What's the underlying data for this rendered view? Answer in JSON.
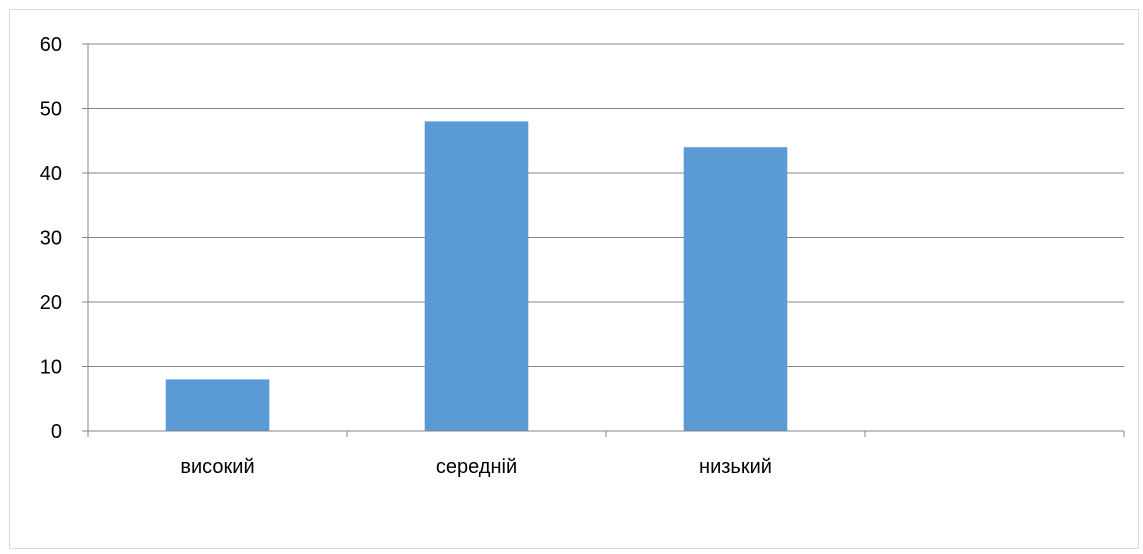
{
  "chart_data": {
    "type": "bar",
    "title": "",
    "xlabel": "",
    "ylabel": "",
    "categories": [
      "високий",
      "середній",
      "низький",
      ""
    ],
    "values": [
      8,
      48,
      44,
      null
    ],
    "ylim": [
      0,
      60
    ],
    "yticks": [
      0,
      10,
      20,
      30,
      40,
      50,
      60
    ],
    "grid": true,
    "legend": "none",
    "colors": {
      "bar": "#5B9BD5",
      "grid": "#868686",
      "frame": "#d9d9d9"
    }
  }
}
